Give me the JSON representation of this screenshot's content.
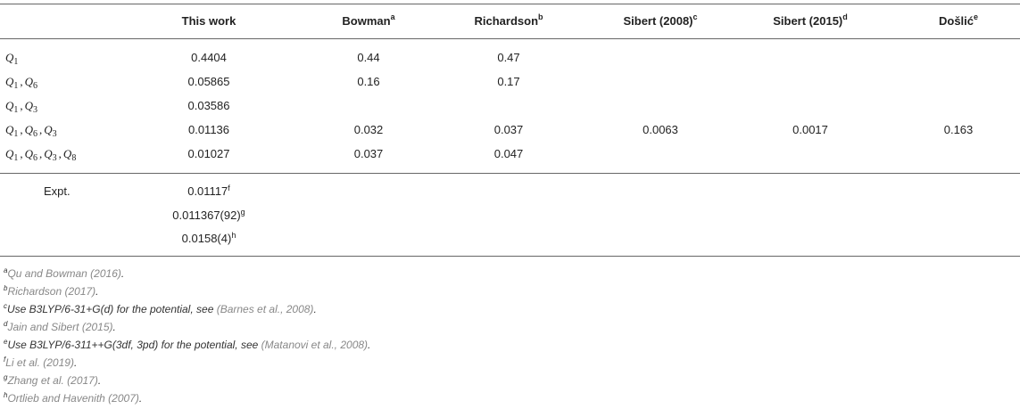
{
  "headers": [
    {
      "text": "This work",
      "sup": ""
    },
    {
      "text": "Bowman",
      "sup": "a"
    },
    {
      "text": "Richardson",
      "sup": "b"
    },
    {
      "text": "Sibert (2008)",
      "sup": "c"
    },
    {
      "text": "Sibert (2015)",
      "sup": "d"
    },
    {
      "text": "Došlić",
      "sup": "e"
    }
  ],
  "rows": [
    {
      "label_parts": [
        "1"
      ],
      "this_work": "0.4404",
      "bowman": "0.44",
      "richardson": "0.47",
      "sibert2008": "",
      "sibert2015": "",
      "doslic": ""
    },
    {
      "label_parts": [
        "1",
        "6"
      ],
      "this_work": "0.05865",
      "bowman": "0.16",
      "richardson": "0.17",
      "sibert2008": "",
      "sibert2015": "",
      "doslic": ""
    },
    {
      "label_parts": [
        "1",
        "3"
      ],
      "this_work": "0.03586",
      "bowman": "",
      "richardson": "",
      "sibert2008": "",
      "sibert2015": "",
      "doslic": ""
    },
    {
      "label_parts": [
        "1",
        "6",
        "3"
      ],
      "this_work": "0.01136",
      "bowman": "0.032",
      "richardson": "0.037",
      "sibert2008": "0.0063",
      "sibert2015": "0.0017",
      "doslic": "0.163"
    },
    {
      "label_parts": [
        "1",
        "6",
        "3",
        "8"
      ],
      "this_work": "0.01027",
      "bowman": "0.037",
      "richardson": "0.047",
      "sibert2008": "",
      "sibert2015": "",
      "doslic": ""
    }
  ],
  "expt": {
    "label": "Expt.",
    "values": [
      {
        "value": "0.01117",
        "sup": "f"
      },
      {
        "value": "0.011367(92)",
        "sup": "g"
      },
      {
        "value": "0.0158(4)",
        "sup": "h"
      }
    ]
  },
  "footnotes": [
    {
      "mark": "a",
      "text": "",
      "ref": "Qu and Bowman (2016)",
      "tail": "."
    },
    {
      "mark": "b",
      "text": "",
      "ref": "Richardson (2017)",
      "tail": "."
    },
    {
      "mark": "c",
      "text": "Use B3LYP/6-31+G(d) for the potential, see ",
      "ref": "(Barnes et al., 2008)",
      "tail": "."
    },
    {
      "mark": "d",
      "text": "",
      "ref": "Jain and Sibert (2015)",
      "tail": "."
    },
    {
      "mark": "e",
      "text": "Use B3LYP/6-311++G(3df, 3pd) for the potential, see ",
      "ref": "(Matanovi et al., 2008)",
      "tail": "."
    },
    {
      "mark": "f",
      "text": "",
      "ref": "Li et al. (2019)",
      "tail": "."
    },
    {
      "mark": "g",
      "text": "",
      "ref": "Zhang et al. (2017)",
      "tail": "."
    },
    {
      "mark": "h",
      "text": "",
      "ref": "Ortlieb and Havenith (2007)",
      "tail": "."
    }
  ]
}
